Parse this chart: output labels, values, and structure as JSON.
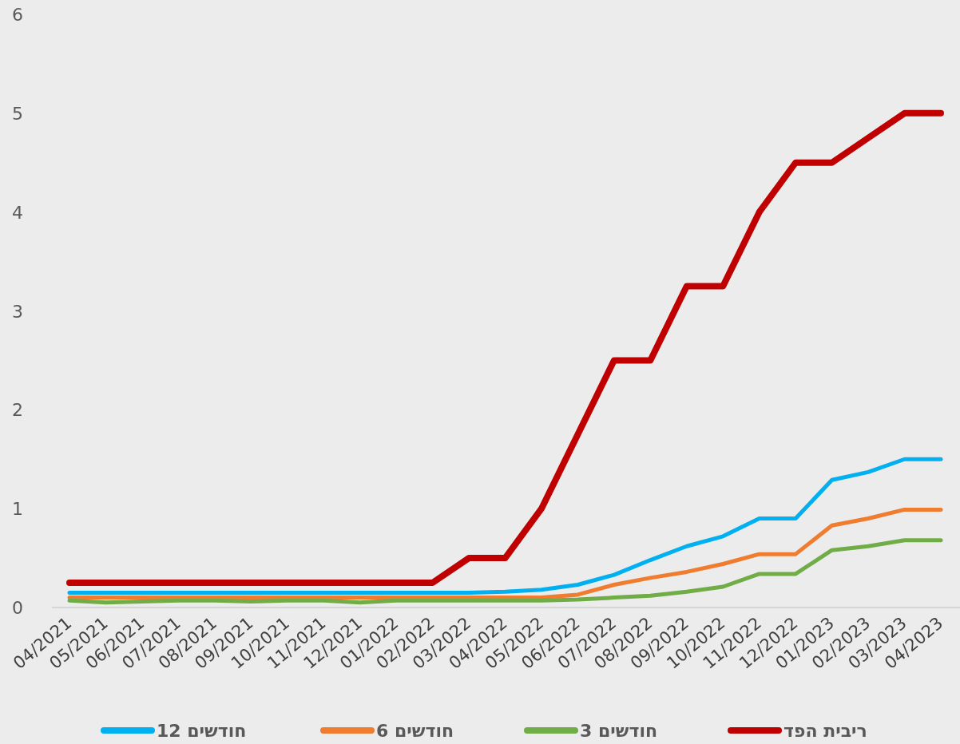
{
  "chart_data": {
    "type": "line",
    "categories": [
      "04/2021",
      "05/2021",
      "06/2021",
      "07/2021",
      "08/2021",
      "09/2021",
      "10/2021",
      "11/2021",
      "12/2021",
      "01/2022",
      "02/2022",
      "03/2022",
      "04/2022",
      "05/2022",
      "06/2022",
      "07/2022",
      "08/2022",
      "09/2022",
      "10/2022",
      "11/2022",
      "12/2022",
      "01/2023",
      "02/2023",
      "03/2023",
      "04/2023"
    ],
    "series": [
      {
        "name": "12 חודשים",
        "color": "#00b0f0",
        "values": [
          0.15,
          0.15,
          0.15,
          0.15,
          0.15,
          0.15,
          0.15,
          0.15,
          0.15,
          0.15,
          0.15,
          0.15,
          0.16,
          0.18,
          0.23,
          0.33,
          0.48,
          0.62,
          0.72,
          0.9,
          0.9,
          1.29,
          1.37,
          1.5,
          1.5
        ]
      },
      {
        "name": "6 חודשים",
        "color": "#f07c30",
        "values": [
          0.1,
          0.1,
          0.1,
          0.1,
          0.1,
          0.1,
          0.1,
          0.1,
          0.1,
          0.1,
          0.1,
          0.1,
          0.1,
          0.1,
          0.13,
          0.23,
          0.3,
          0.36,
          0.44,
          0.54,
          0.54,
          0.83,
          0.9,
          0.99,
          0.99
        ]
      },
      {
        "name": "3 חודשים",
        "color": "#70ad47",
        "values": [
          0.07,
          0.05,
          0.06,
          0.07,
          0.07,
          0.06,
          0.07,
          0.07,
          0.05,
          0.07,
          0.07,
          0.07,
          0.07,
          0.07,
          0.08,
          0.1,
          0.12,
          0.16,
          0.21,
          0.34,
          0.34,
          0.58,
          0.62,
          0.68,
          0.68
        ]
      },
      {
        "name": "ריבית הפד",
        "color": "#c00000",
        "values": [
          0.25,
          0.25,
          0.25,
          0.25,
          0.25,
          0.25,
          0.25,
          0.25,
          0.25,
          0.25,
          0.25,
          0.5,
          0.5,
          1.0,
          1.75,
          2.5,
          2.5,
          3.25,
          3.25,
          4.0,
          4.5,
          4.5,
          4.75,
          5.0,
          5.0
        ]
      }
    ],
    "ylim": [
      0,
      6
    ],
    "yticks": [
      0,
      1,
      2,
      3,
      4,
      5,
      6
    ],
    "grid": false,
    "legend": "bottom",
    "marker": "none",
    "line_style": "solid"
  }
}
